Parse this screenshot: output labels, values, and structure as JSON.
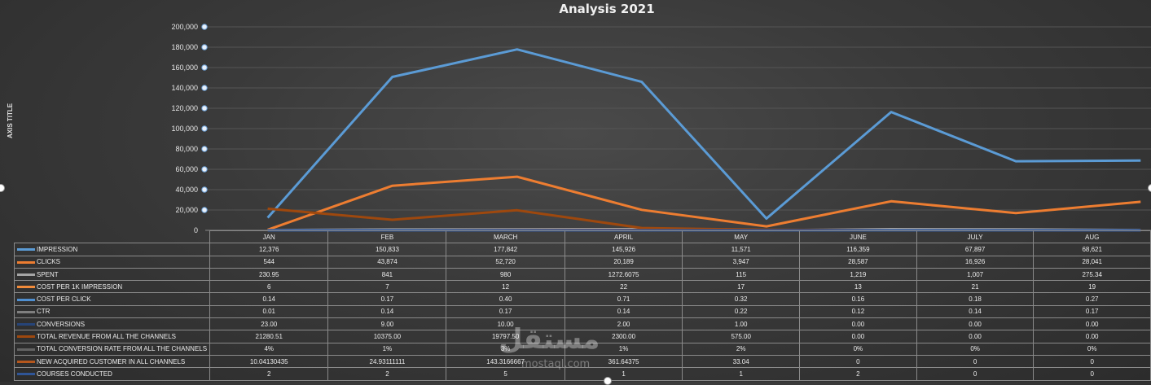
{
  "chart_data": {
    "type": "line",
    "title": "Analysis 2021",
    "ylabel": "AXIS TITLE",
    "ylim": [
      0,
      200000
    ],
    "yticks": [
      0,
      20000,
      40000,
      60000,
      80000,
      100000,
      120000,
      140000,
      160000,
      180000,
      200000
    ],
    "ytick_labels": [
      "0",
      "20,000",
      "40,000",
      "60,000",
      "80,000",
      "100,000",
      "120,000",
      "140,000",
      "160,000",
      "180,000",
      "200,000"
    ],
    "grid": true,
    "categories": [
      "JAN",
      "FEB",
      "MARCH",
      "APRIL",
      "MAY",
      "JUNE",
      "JULY",
      "AUG"
    ],
    "series": [
      {
        "name": "IMPRESSION",
        "color": "#5b9bd5",
        "values": [
          12376,
          150833,
          177842,
          145926,
          11571,
          116359,
          67897,
          68621
        ],
        "labels": [
          "12,376",
          "150,833",
          "177,842",
          "145,926",
          "11,571",
          "116,359",
          "67,897",
          "68,621"
        ]
      },
      {
        "name": "CLICKS",
        "color": "#ed7d31",
        "values": [
          544,
          43874,
          52720,
          20189,
          3947,
          28587,
          16926,
          28041
        ],
        "labels": [
          "544",
          "43,874",
          "52,720",
          "20,189",
          "3,947",
          "28,587",
          "16,926",
          "28,041"
        ]
      },
      {
        "name": "SPENT",
        "color": "#a5a5a5",
        "values": [
          230.95,
          841,
          980,
          1272.6075,
          115,
          1219,
          1007,
          275.34
        ],
        "labels": [
          "230.95",
          "841",
          "980",
          "1272.6075",
          "115",
          "1,219",
          "1,007",
          "275.34"
        ]
      },
      {
        "name": "COST PER 1K IMPRESSION",
        "color": "#f08a3a",
        "values": [
          6,
          7,
          12,
          22,
          17,
          13,
          21,
          19
        ],
        "labels": [
          "6",
          "7",
          "12",
          "22",
          "17",
          "13",
          "21",
          "19"
        ]
      },
      {
        "name": "COST PER CLICK",
        "color": "#4f8fd0",
        "values": [
          0.14,
          0.17,
          0.4,
          0.71,
          0.32,
          0.16,
          0.18,
          0.27
        ],
        "labels": [
          "0.14",
          "0.17",
          "0.40",
          "0.71",
          "0.32",
          "0.16",
          "0.18",
          "0.27"
        ]
      },
      {
        "name": "CTR",
        "color": "#7f7f7f",
        "values": [
          0.01,
          0.14,
          0.17,
          0.14,
          0.22,
          0.12,
          0.14,
          0.17
        ],
        "labels": [
          "0.01",
          "0.14",
          "0.17",
          "0.14",
          "0.22",
          "0.12",
          "0.14",
          "0.17"
        ]
      },
      {
        "name": "CONVERSIONS",
        "color": "#264478",
        "values": [
          23.0,
          9.0,
          10.0,
          2.0,
          1.0,
          0.0,
          0.0,
          0.0
        ],
        "labels": [
          "23.00",
          "9.00",
          "10.00",
          "2.00",
          "1.00",
          "0.00",
          "0.00",
          "0.00"
        ]
      },
      {
        "name": "TOTAL REVENUE FROM ALL THE CHANNELS",
        "color": "#9e480e",
        "values": [
          21280.51,
          10375.0,
          19797.5,
          2300.0,
          575.0,
          0.0,
          0.0,
          0.0
        ],
        "labels": [
          "21280.51",
          "10375.00",
          "19797.50",
          "2300.00",
          "575.00",
          "0.00",
          "0.00",
          "0.00"
        ]
      },
      {
        "name": "TOTAL CONVERSION RATE FROM ALL THE CHANNELS",
        "color": "#636363",
        "values": [
          0.04,
          0.01,
          0.03,
          0.01,
          0.02,
          0,
          0,
          0
        ],
        "labels": [
          "4%",
          "1%",
          "3%",
          "1%",
          "2%",
          "0%",
          "0%",
          "0%"
        ]
      },
      {
        "name": "NEW ACQUIRED CUSTOMER IN ALL CHANNELS",
        "color": "#b5571d",
        "values": [
          10.04130435,
          24.93111111,
          143.3166667,
          361.64375,
          33.04,
          0,
          0,
          0
        ],
        "labels": [
          "10.04130435",
          "24.93111111",
          "143.3166667",
          "361.64375",
          "33.04",
          "0",
          "0",
          "0"
        ]
      },
      {
        "name": "COURSES CONDUCTED",
        "color": "#2f5597",
        "values": [
          2,
          2,
          5,
          1,
          1,
          2,
          0,
          0
        ],
        "labels": [
          "2",
          "2",
          "5",
          "1",
          "1",
          "2",
          "0",
          "0"
        ]
      }
    ]
  },
  "watermark": {
    "text": "مستقل",
    "sub": "mostaql.com"
  }
}
